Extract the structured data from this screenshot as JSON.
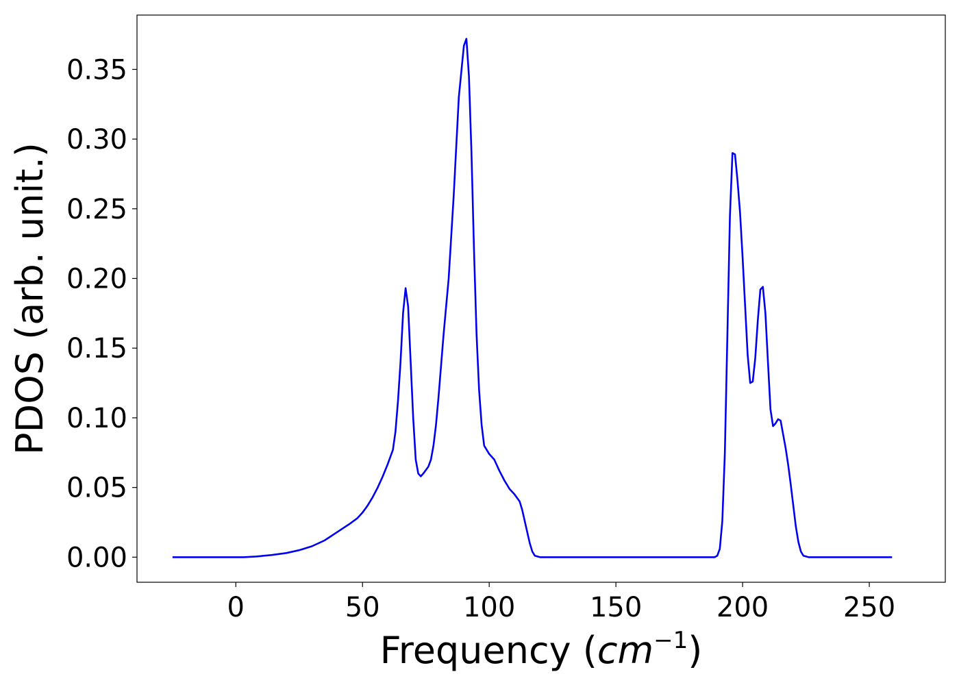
{
  "chart_data": {
    "type": "line",
    "title": "",
    "xlabel_prefix": "Frequency (",
    "xlabel_var": "cm",
    "xlabel_exp": "−1",
    "xlabel_suffix": ")",
    "ylabel": "PDOS (arb. unit.)",
    "xlim": [
      -39,
      280
    ],
    "ylim": [
      -0.018,
      0.389
    ],
    "xticks": [
      0,
      50,
      100,
      150,
      200,
      250
    ],
    "xtick_labels": [
      "0",
      "50",
      "100",
      "150",
      "200",
      "250"
    ],
    "yticks": [
      0.0,
      0.05,
      0.1,
      0.15,
      0.2,
      0.25,
      0.3,
      0.35
    ],
    "ytick_labels": [
      "0.00",
      "0.05",
      "0.10",
      "0.15",
      "0.20",
      "0.25",
      "0.30",
      "0.35"
    ],
    "grid": false,
    "series": [
      {
        "color": "#0000ee",
        "points": [
          [
            -25,
            0.0
          ],
          [
            0,
            0.0
          ],
          [
            3,
            0.0
          ],
          [
            8,
            0.0005
          ],
          [
            14,
            0.0015
          ],
          [
            20,
            0.003
          ],
          [
            25,
            0.005
          ],
          [
            30,
            0.0078
          ],
          [
            35,
            0.012
          ],
          [
            40,
            0.018
          ],
          [
            45,
            0.024
          ],
          [
            48,
            0.028
          ],
          [
            50,
            0.032
          ],
          [
            52,
            0.037
          ],
          [
            54,
            0.043
          ],
          [
            56,
            0.05
          ],
          [
            58,
            0.058
          ],
          [
            60,
            0.067
          ],
          [
            62,
            0.077
          ],
          [
            63,
            0.09
          ],
          [
            64,
            0.112
          ],
          [
            65,
            0.14
          ],
          [
            66,
            0.175
          ],
          [
            67,
            0.193
          ],
          [
            68,
            0.18
          ],
          [
            69,
            0.14
          ],
          [
            70,
            0.1
          ],
          [
            71,
            0.07
          ],
          [
            72,
            0.06
          ],
          [
            73,
            0.058
          ],
          [
            74,
            0.06
          ],
          [
            76,
            0.065
          ],
          [
            77,
            0.07
          ],
          [
            78,
            0.08
          ],
          [
            79,
            0.095
          ],
          [
            80,
            0.115
          ],
          [
            82,
            0.16
          ],
          [
            84,
            0.2
          ],
          [
            86,
            0.26
          ],
          [
            88,
            0.33
          ],
          [
            90,
            0.367
          ],
          [
            91,
            0.372
          ],
          [
            92,
            0.345
          ],
          [
            93,
            0.29
          ],
          [
            94,
            0.22
          ],
          [
            95,
            0.16
          ],
          [
            96,
            0.12
          ],
          [
            97,
            0.095
          ],
          [
            98,
            0.08
          ],
          [
            100,
            0.074
          ],
          [
            102,
            0.07
          ],
          [
            104,
            0.062
          ],
          [
            106,
            0.055
          ],
          [
            108,
            0.049
          ],
          [
            110,
            0.045
          ],
          [
            112,
            0.04
          ],
          [
            113,
            0.034
          ],
          [
            114,
            0.026
          ],
          [
            115,
            0.018
          ],
          [
            116,
            0.01
          ],
          [
            117,
            0.004
          ],
          [
            118,
            0.001
          ],
          [
            120,
            0.0
          ],
          [
            125,
            0.0
          ],
          [
            150,
            0.0
          ],
          [
            180,
            0.0
          ],
          [
            189,
            0.0
          ],
          [
            190,
            0.001
          ],
          [
            191,
            0.006
          ],
          [
            192,
            0.026
          ],
          [
            193,
            0.075
          ],
          [
            194,
            0.16
          ],
          [
            195,
            0.245
          ],
          [
            196,
            0.29
          ],
          [
            197,
            0.289
          ],
          [
            198,
            0.27
          ],
          [
            199,
            0.247
          ],
          [
            200,
            0.215
          ],
          [
            201,
            0.18
          ],
          [
            202,
            0.145
          ],
          [
            203,
            0.125
          ],
          [
            204,
            0.126
          ],
          [
            205,
            0.143
          ],
          [
            206,
            0.17
          ],
          [
            207,
            0.192
          ],
          [
            208,
            0.194
          ],
          [
            209,
            0.175
          ],
          [
            210,
            0.14
          ],
          [
            211,
            0.106
          ],
          [
            212,
            0.094
          ],
          [
            213,
            0.096
          ],
          [
            214,
            0.099
          ],
          [
            215,
            0.098
          ],
          [
            216,
            0.088
          ],
          [
            217,
            0.078
          ],
          [
            218,
            0.066
          ],
          [
            219,
            0.052
          ],
          [
            220,
            0.037
          ],
          [
            221,
            0.022
          ],
          [
            222,
            0.011
          ],
          [
            223,
            0.004
          ],
          [
            224,
            0.001
          ],
          [
            226,
            0.0
          ],
          [
            240,
            0.0
          ],
          [
            259,
            0.0
          ]
        ]
      }
    ]
  }
}
